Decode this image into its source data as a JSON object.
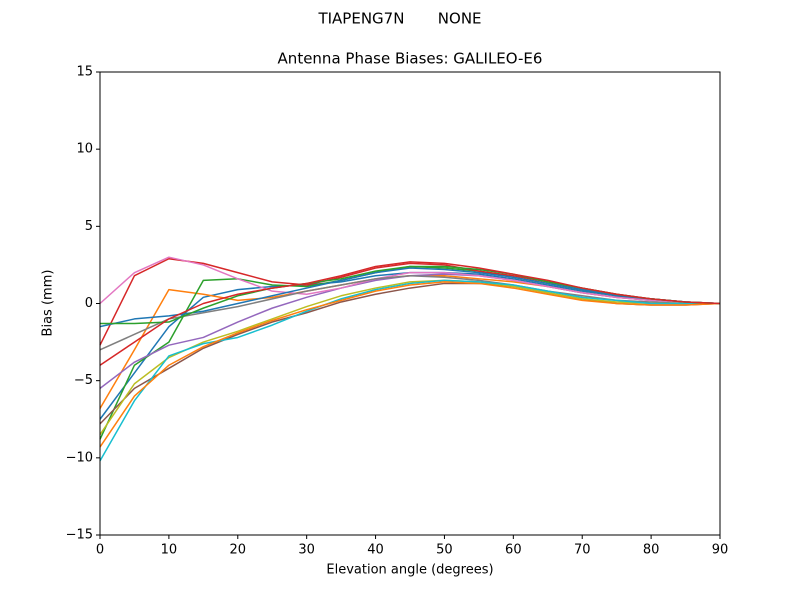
{
  "chart_data": {
    "type": "line",
    "suptitle": "TIAPENG7N       NONE",
    "title": "Antenna Phase Biases: GALILEO-E6",
    "xlabel": "Elevation angle (degrees)",
    "ylabel": "Bias (mm)",
    "x": [
      0,
      5,
      10,
      15,
      20,
      25,
      30,
      35,
      40,
      45,
      50,
      55,
      60,
      65,
      70,
      75,
      80,
      85,
      90
    ],
    "xlim": [
      0,
      90
    ],
    "xticks": [
      0,
      10,
      20,
      30,
      40,
      50,
      60,
      70,
      80,
      90
    ],
    "ylim": [
      -15,
      15
    ],
    "yticks": [
      {
        "value": -15,
        "label": "−15"
      },
      {
        "value": -10,
        "label": "−10"
      },
      {
        "value": -5,
        "label": "−5"
      },
      0,
      5,
      10,
      15
    ],
    "series": [
      {
        "color": "#1f77b4",
        "values": [
          -7.5,
          -4.5,
          -1.5,
          0.4,
          0.9,
          1.1,
          1.2,
          1.4,
          1.8,
          2.0,
          2.0,
          1.9,
          1.6,
          1.2,
          0.8,
          0.5,
          0.3,
          0.1,
          0
        ]
      },
      {
        "color": "#ff7f0e",
        "values": [
          -6.8,
          -3.0,
          0.9,
          0.6,
          0.2,
          0.4,
          0.8,
          1.2,
          1.6,
          1.8,
          1.8,
          1.6,
          1.4,
          1.1,
          0.7,
          0.4,
          0.2,
          0.1,
          0
        ]
      },
      {
        "color": "#2ca02c",
        "values": [
          -8.8,
          -4.0,
          -2.5,
          1.5,
          1.6,
          1.2,
          1.1,
          1.5,
          2.0,
          2.4,
          2.3,
          2.1,
          1.7,
          1.3,
          0.9,
          0.5,
          0.3,
          0.1,
          0
        ]
      },
      {
        "color": "#d62728",
        "values": [
          -2.7,
          1.8,
          2.9,
          2.6,
          2.0,
          1.4,
          1.2,
          1.7,
          2.3,
          2.6,
          2.5,
          2.1,
          1.8,
          1.4,
          1.0,
          0.6,
          0.3,
          0.1,
          0
        ]
      },
      {
        "color": "#9467bd",
        "values": [
          -5.5,
          -3.8,
          -2.7,
          -2.2,
          -1.2,
          -0.3,
          0.4,
          1.0,
          1.5,
          1.8,
          1.9,
          1.8,
          1.5,
          1.1,
          0.7,
          0.4,
          0.2,
          0.1,
          0
        ]
      },
      {
        "color": "#8c564b",
        "values": [
          -7.8,
          -5.5,
          -4.2,
          -2.9,
          -2.0,
          -1.2,
          -0.6,
          0.1,
          0.6,
          1.0,
          1.3,
          1.3,
          1.1,
          0.7,
          0.3,
          0.0,
          -0.1,
          -0.1,
          0
        ]
      },
      {
        "color": "#e377c2",
        "values": [
          0.0,
          2.0,
          3.0,
          2.5,
          1.6,
          0.8,
          0.6,
          1.0,
          1.6,
          2.0,
          2.0,
          1.8,
          1.5,
          1.1,
          0.7,
          0.4,
          0.2,
          0.1,
          0
        ]
      },
      {
        "color": "#7f7f7f",
        "values": [
          -3.0,
          -2.0,
          -1.0,
          -0.6,
          -0.2,
          0.3,
          0.8,
          1.2,
          1.6,
          1.8,
          1.7,
          1.5,
          1.2,
          0.8,
          0.5,
          0.2,
          0.1,
          0.0,
          0
        ]
      },
      {
        "color": "#bcbd22",
        "values": [
          -8.5,
          -5.2,
          -3.5,
          -2.5,
          -1.8,
          -1.0,
          -0.2,
          0.5,
          1.0,
          1.4,
          1.5,
          1.4,
          1.1,
          0.7,
          0.3,
          0.1,
          0.0,
          0.0,
          0
        ]
      },
      {
        "color": "#17becf",
        "values": [
          -10.2,
          -6.3,
          -3.4,
          -2.6,
          -2.2,
          -1.4,
          -0.5,
          0.3,
          0.9,
          1.3,
          1.5,
          1.4,
          1.2,
          0.8,
          0.4,
          0.2,
          0.0,
          0.0,
          0
        ]
      },
      {
        "color": "#1f77b4",
        "values": [
          -1.5,
          -1.0,
          -0.8,
          -0.5,
          0.0,
          0.5,
          1.0,
          1.5,
          2.0,
          2.3,
          2.2,
          2.0,
          1.7,
          1.3,
          0.9,
          0.5,
          0.3,
          0.1,
          0
        ]
      },
      {
        "color": "#ff7f0e",
        "values": [
          -9.3,
          -6.0,
          -4.0,
          -2.8,
          -1.9,
          -1.1,
          -0.4,
          0.2,
          0.8,
          1.2,
          1.4,
          1.3,
          1.0,
          0.6,
          0.2,
          0.0,
          -0.1,
          -0.1,
          0
        ]
      },
      {
        "color": "#2ca02c",
        "values": [
          -1.3,
          -1.3,
          -1.2,
          -0.3,
          0.5,
          1.0,
          1.3,
          1.6,
          2.1,
          2.4,
          2.4,
          2.2,
          1.9,
          1.4,
          1.0,
          0.6,
          0.3,
          0.1,
          0
        ]
      },
      {
        "color": "#d62728",
        "values": [
          -4.0,
          -2.5,
          -1.0,
          0.0,
          0.6,
          1.0,
          1.3,
          1.8,
          2.4,
          2.7,
          2.6,
          2.3,
          1.9,
          1.5,
          1.0,
          0.6,
          0.3,
          0.1,
          0
        ]
      }
    ]
  }
}
